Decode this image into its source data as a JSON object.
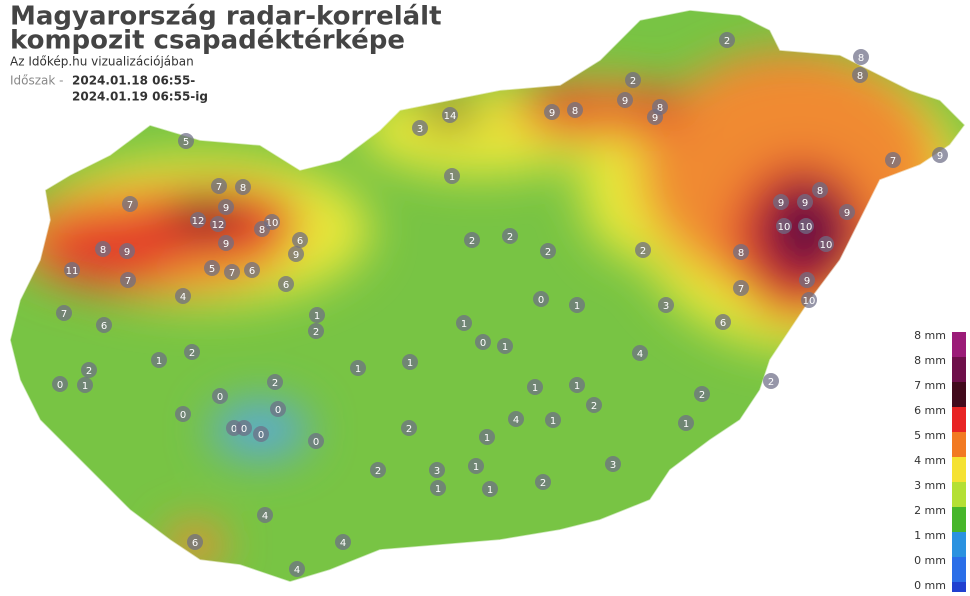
{
  "header": {
    "title_lines": [
      "Magyarország radar-korrelált",
      "kompozit csapadéktérképe"
    ],
    "subtitle": "Az Időkép.hu vizualizációjában",
    "period_label": "Időszak -",
    "period_from": "2024.01.18 06:55-",
    "period_to": "2024.01.19 06:55-ig"
  },
  "legend": {
    "items": [
      {
        "label": "8 mm",
        "color": "#9b1b78"
      },
      {
        "label": "8 mm",
        "color": "#6e0f4a"
      },
      {
        "label": "7 mm",
        "color": "#420a1c"
      },
      {
        "label": "6 mm",
        "color": "#e82424"
      },
      {
        "label": "5 mm",
        "color": "#f27a22"
      },
      {
        "label": "4 mm",
        "color": "#f5e232"
      },
      {
        "label": "3 mm",
        "color": "#b4e034"
      },
      {
        "label": "2 mm",
        "color": "#46b62a"
      },
      {
        "label": "1 mm",
        "color": "#2a92e0"
      },
      {
        "label": "0 mm",
        "color": "#2a6ee8"
      },
      {
        "label": "0 mm",
        "color": "#2040d0"
      }
    ]
  },
  "stations": [
    14,
    9,
    8,
    9,
    8,
    9,
    12,
    12,
    9,
    10,
    8,
    9,
    8,
    9,
    11,
    7,
    5,
    7,
    6,
    6,
    6,
    9,
    5,
    8,
    7,
    7,
    7,
    6,
    4,
    1,
    2,
    2,
    0,
    1,
    0,
    0,
    0,
    0,
    0,
    0,
    2,
    0,
    6,
    4,
    4,
    4,
    2,
    3,
    1,
    1,
    4,
    1,
    2,
    1,
    2,
    2,
    7,
    6,
    8,
    9,
    9,
    9,
    8,
    10,
    10,
    10,
    10,
    9,
    9,
    7,
    8,
    8,
    2,
    2,
    2,
    3,
    1,
    2,
    2,
    2,
    0,
    1,
    1,
    0,
    1,
    1,
    1,
    2,
    1,
    1,
    2,
    3,
    3,
    4,
    1,
    1,
    2,
    1
  ]
}
